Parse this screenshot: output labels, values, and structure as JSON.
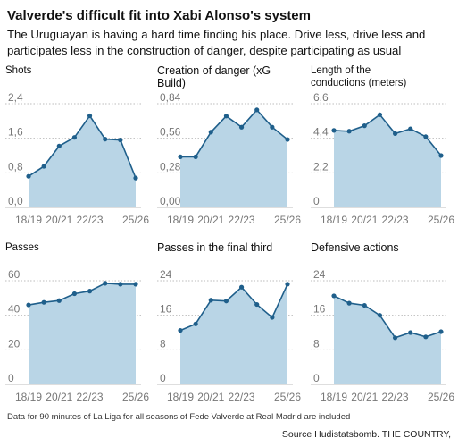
{
  "title": "Valverde's difficult fit into Xabi Alonso's system",
  "subtitle": "The Uruguayan is having a hard time finding his place. Drive less, drive less and participates less in the construction of danger, despite participating as usual",
  "footnote": "Data for 90 minutes of La Liga for all seasons of Fede Valverde at Real Madrid are included",
  "source": "Source Hudistatsbomb. THE COUNTRY,",
  "colors": {
    "area": "#b9d5e6",
    "line": "#1f5f8b",
    "grid": "#bdbdbd"
  },
  "chart_data": [
    {
      "type": "area",
      "title": "Shots",
      "x": [
        "18/19",
        "19/20",
        "20/21",
        "21/22",
        "22/23",
        "23/24",
        "24/25",
        "25/26"
      ],
      "x_tick_labels": [
        "18/19",
        "20/21",
        "22/23",
        "25/26"
      ],
      "y_tick_labels": [
        "0,0",
        "0,8",
        "1,6",
        "2,4"
      ],
      "values": [
        0.72,
        0.95,
        1.42,
        1.62,
        2.12,
        1.58,
        1.56,
        0.68
      ],
      "ylim": [
        0,
        2.4
      ],
      "grid": true
    },
    {
      "type": "area",
      "title": "Creation of danger (xG Build)",
      "x": [
        "18/19",
        "19/20",
        "20/21",
        "21/22",
        "22/23",
        "23/24",
        "24/25",
        "25/26"
      ],
      "x_tick_labels": [
        "18/19",
        "20/21",
        "22/23",
        "25/26"
      ],
      "y_tick_labels": [
        "0,00",
        "0,28",
        "0,56",
        "0,84"
      ],
      "values": [
        0.41,
        0.41,
        0.61,
        0.74,
        0.65,
        0.79,
        0.65,
        0.55
      ],
      "ylim": [
        0,
        0.84
      ],
      "grid": true
    },
    {
      "type": "area",
      "title": "Length of the conductions (meters)",
      "x": [
        "18/19",
        "19/20",
        "20/21",
        "21/22",
        "22/23",
        "23/24",
        "24/25",
        "25/26"
      ],
      "x_tick_labels": [
        "18/19",
        "20/21",
        "22/23",
        "25/26"
      ],
      "y_tick_labels": [
        "0",
        "2,2",
        "4,4",
        "6,6"
      ],
      "values": [
        4.9,
        4.85,
        5.2,
        5.9,
        4.7,
        5.0,
        4.5,
        3.3
      ],
      "ylim": [
        0,
        6.6
      ],
      "grid": true
    },
    {
      "type": "area",
      "title": "Passes",
      "x": [
        "18/19",
        "19/20",
        "20/21",
        "21/22",
        "22/23",
        "23/24",
        "24/25",
        "25/26"
      ],
      "x_tick_labels": [
        "18/19",
        "20/21",
        "22/23",
        "25/26"
      ],
      "y_tick_labels": [
        "0",
        "20",
        "40",
        "60"
      ],
      "values": [
        46,
        47.5,
        48.5,
        52.5,
        54,
        58.5,
        58,
        58
      ],
      "ylim": [
        0,
        60
      ],
      "grid": true
    },
    {
      "type": "area",
      "title": "Passes in the final third",
      "x": [
        "18/19",
        "19/20",
        "20/21",
        "21/22",
        "22/23",
        "23/24",
        "24/25",
        "25/26"
      ],
      "x_tick_labels": [
        "18/19",
        "20/21",
        "22/23",
        "25/26"
      ],
      "y_tick_labels": [
        "0",
        "8",
        "16",
        "24"
      ],
      "values": [
        12.5,
        14,
        19.5,
        19.3,
        22.5,
        18.5,
        15.5,
        23.2
      ],
      "ylim": [
        0,
        24
      ],
      "grid": true
    },
    {
      "type": "area",
      "title": "Defensive actions",
      "x": [
        "18/19",
        "19/20",
        "20/21",
        "21/22",
        "22/23",
        "23/24",
        "24/25",
        "25/26"
      ],
      "x_tick_labels": [
        "18/19",
        "20/21",
        "22/23",
        "25/26"
      ],
      "y_tick_labels": [
        "0",
        "8",
        "16",
        "24"
      ],
      "values": [
        20.5,
        18.8,
        18.3,
        16,
        10.8,
        12,
        11,
        12.2
      ],
      "ylim": [
        0,
        24
      ],
      "grid": true
    }
  ]
}
